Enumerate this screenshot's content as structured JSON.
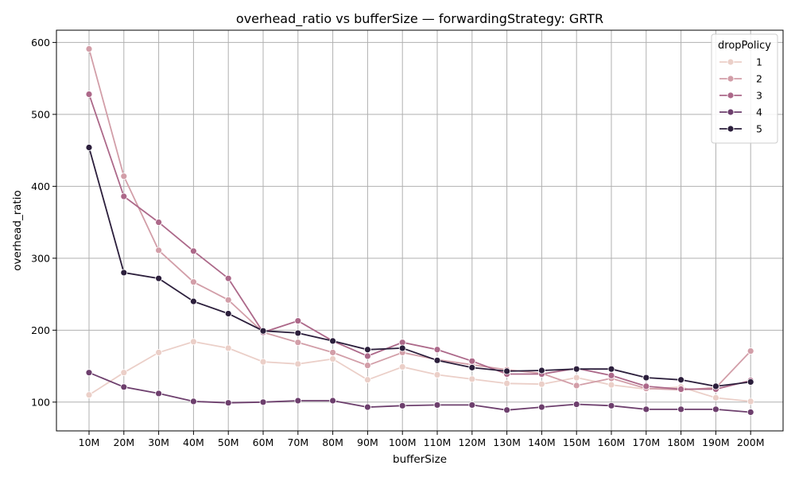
{
  "chart_data": {
    "type": "line",
    "title": "overhead_ratio vs bufferSize — forwardingStrategy: GRTR",
    "xlabel": "bufferSize",
    "ylabel": "overhead_ratio",
    "categories": [
      "10M",
      "20M",
      "30M",
      "40M",
      "50M",
      "60M",
      "70M",
      "80M",
      "90M",
      "100M",
      "110M",
      "120M",
      "130M",
      "140M",
      "150M",
      "160M",
      "170M",
      "180M",
      "190M",
      "200M"
    ],
    "ylim": [
      60,
      617
    ],
    "yticks": [
      100,
      200,
      300,
      400,
      500,
      600
    ],
    "grid": true,
    "legend": {
      "title": "dropPolicy",
      "placement": "top-right"
    },
    "series": [
      {
        "name": "1",
        "color": "#ebcfc8",
        "values": [
          110,
          141,
          169,
          184,
          175,
          156,
          153,
          160,
          131,
          149,
          138,
          132,
          126,
          125,
          134,
          124,
          118,
          121,
          106,
          101
        ]
      },
      {
        "name": "2",
        "color": "#d29ea8",
        "values": [
          591,
          414,
          311,
          267,
          242,
          197,
          183,
          169,
          151,
          169,
          159,
          152,
          145,
          140,
          123,
          133,
          119,
          117,
          120,
          171
        ]
      },
      {
        "name": "3",
        "color": "#ac6889",
        "values": [
          528,
          386,
          350,
          310,
          272,
          197,
          213,
          185,
          164,
          183,
          173,
          157,
          139,
          139,
          147,
          137,
          122,
          118,
          118,
          130
        ]
      },
      {
        "name": "4",
        "color": "#6d3f6d",
        "values": [
          141,
          121,
          112,
          101,
          99,
          100,
          102,
          102,
          93,
          95,
          96,
          96,
          89,
          93,
          97,
          95,
          90,
          90,
          90,
          86
        ]
      },
      {
        "name": "5",
        "color": "#2c1f3c",
        "values": [
          454,
          280,
          272,
          240,
          223,
          199,
          196,
          185,
          173,
          175,
          158,
          148,
          143,
          144,
          146,
          146,
          134,
          131,
          122,
          128
        ]
      }
    ]
  }
}
